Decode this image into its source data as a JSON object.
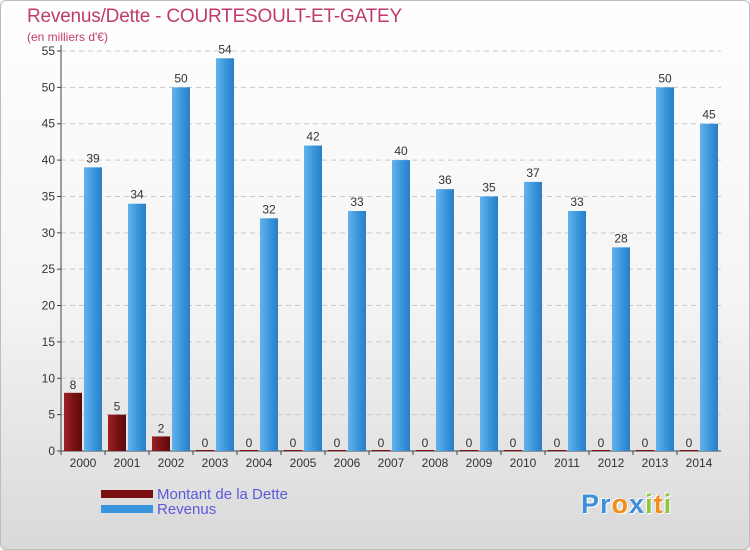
{
  "header": {
    "title": "Revenus/Dette - COURTESOULT-ET-GATEY",
    "subtitle": "(en milliers d'€)"
  },
  "logo": {
    "text": "Proxiti",
    "letters": [
      {
        "ch": "P",
        "color": "#3f8fd6"
      },
      {
        "ch": "r",
        "color": "#3f8fd6"
      },
      {
        "ch": "o",
        "color": "#f28c1a"
      },
      {
        "ch": "x",
        "color": "#3f8fd6"
      },
      {
        "ch": "i",
        "color": "#8cc63f"
      },
      {
        "ch": "t",
        "color": "#f28c1a"
      },
      {
        "ch": "i",
        "color": "#8cc63f"
      }
    ]
  },
  "colors": {
    "dette": "#7a0f12",
    "revenus": "#3a95dc",
    "axis": "#444444",
    "grid": "#c9c9c9"
  },
  "chart_data": {
    "type": "bar",
    "title": "Revenus/Dette - COURTESOULT-ET-GATEY",
    "subtitle": "(en milliers d'€)",
    "categories": [
      "2000",
      "2001",
      "2002",
      "2003",
      "2004",
      "2005",
      "2006",
      "2007",
      "2008",
      "2009",
      "2010",
      "2011",
      "2012",
      "2013",
      "2014"
    ],
    "series": [
      {
        "name": "Montant de la Dette",
        "values": [
          8,
          5,
          2,
          0,
          0,
          0,
          0,
          0,
          0,
          0,
          0,
          0,
          0,
          0,
          0
        ]
      },
      {
        "name": "Revenus",
        "values": [
          39,
          34,
          50,
          54,
          32,
          42,
          33,
          40,
          36,
          35,
          37,
          33,
          28,
          50,
          45
        ]
      }
    ],
    "ylim": [
      0,
      55
    ],
    "yticks": [
      0,
      5,
      10,
      15,
      20,
      25,
      30,
      35,
      40,
      45,
      50,
      55
    ],
    "grid": "horizontal dashed",
    "legend": "bottom-left"
  }
}
